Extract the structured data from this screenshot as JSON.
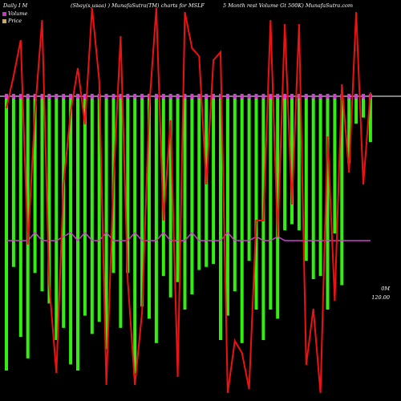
{
  "header": {
    "left": "Daily I  M",
    "center": "(Sbay(s,usaa) ) MunafaSutra(TM) charts for MSLF",
    "right": "5 Month  rest  Volume  Gt 500K) MunafaSutra.com"
  },
  "legend": [
    {
      "label": "Volume",
      "color": "#cc33cc"
    },
    {
      "label": "Price",
      "color": "#ccaa66"
    }
  ],
  "axis": {
    "volume_label": "0M",
    "price_label": "120.00"
  },
  "colors": {
    "background": "#000000",
    "volume_bar": "#33ee11",
    "volume_marker": "#cc44cc",
    "price_line": "#ee1111",
    "moving_average": "#cc44cc",
    "baseline": "#ffffff"
  },
  "chart_data": {
    "type": "bar",
    "series": [
      {
        "name": "Volume",
        "values": [
          0.9,
          0.56,
          0.79,
          0.86,
          0.58,
          0.64,
          0.68,
          0.8,
          0.76,
          0.88,
          0.9,
          0.72,
          0.78,
          0.74,
          0.83,
          0.58,
          0.76,
          0.58,
          0.91,
          0.69,
          0.73,
          0.81,
          0.59,
          0.66,
          0.61,
          0.7,
          0.65,
          0.57,
          0.56,
          0.55,
          0.8,
          0.72,
          0.64,
          0.81,
          0.54,
          0.7,
          0.8,
          0.7,
          0.73,
          0.44,
          0.42,
          0.44,
          0.54,
          0.6,
          0.59,
          0.7,
          0.45,
          0.62,
          0.22,
          0.09,
          0.07,
          0.15
        ]
      },
      {
        "name": "Price",
        "values": [
          0.73,
          0.81,
          0.9,
          0.39,
          0.72,
          0.95,
          0.29,
          0.07,
          0.54,
          0.72,
          0.83,
          0.69,
          0.98,
          0.8,
          0.04,
          0.55,
          0.91,
          0.3,
          0.04,
          0.22,
          0.73,
          0.98,
          0.45,
          0.7,
          0.06,
          0.97,
          0.88,
          0.86,
          0.54,
          0.85,
          0.87,
          0.02,
          0.15,
          0.12,
          0.03,
          0.45,
          0.45,
          0.95,
          0.41,
          0.94,
          0.49,
          0.94,
          0.09,
          0.23,
          0.02,
          0.66,
          0.25,
          0.79,
          0.57,
          0.97,
          0.54,
          0.77
        ]
      },
      {
        "name": "Moving average",
        "values": [
          0.6,
          0.6,
          0.6,
          0.6,
          0.58,
          0.6,
          0.6,
          0.6,
          0.59,
          0.58,
          0.6,
          0.58,
          0.6,
          0.6,
          0.58,
          0.6,
          0.6,
          0.6,
          0.58,
          0.6,
          0.6,
          0.6,
          0.58,
          0.6,
          0.6,
          0.6,
          0.58,
          0.6,
          0.6,
          0.6,
          0.6,
          0.58,
          0.6,
          0.6,
          0.6,
          0.59,
          0.6,
          0.6,
          0.59,
          0.6,
          0.6,
          0.6,
          0.6,
          0.6,
          0.6,
          0.6,
          0.6,
          0.6,
          0.6,
          0.6,
          0.6,
          0.6
        ]
      }
    ]
  }
}
